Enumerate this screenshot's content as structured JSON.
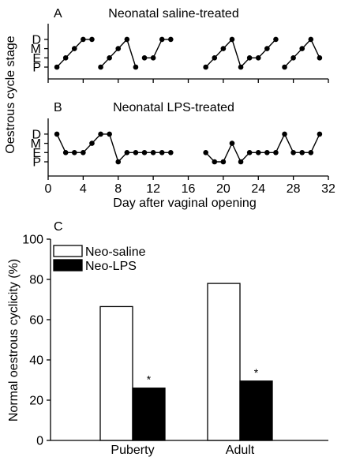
{
  "figure": {
    "shared_ylabel_AB": "Oestrous cycle stage",
    "shared_xlabel_AB": "Day after vaginal opening"
  },
  "chart_data": [
    {
      "panel": "A",
      "type": "line",
      "title": "Neonatal saline-treated",
      "xlabel": "Day after vaginal opening",
      "ylabel": "Oestrous cycle stage",
      "y_categories": [
        "P",
        "E",
        "M",
        "D"
      ],
      "xlim": [
        0,
        32
      ],
      "xticks": [
        0,
        4,
        8,
        12,
        16,
        20,
        24,
        28,
        32
      ],
      "x_tick_labels_shown": false,
      "segments": [
        {
          "x": [
            1,
            2,
            3,
            4,
            5
          ],
          "y": [
            "P",
            "E",
            "M",
            "D",
            "D"
          ]
        },
        {
          "x": [
            6,
            7,
            8,
            9,
            10
          ],
          "y": [
            "P",
            "E",
            "M",
            "D",
            "P"
          ]
        },
        {
          "x": [
            11,
            12,
            13,
            14
          ],
          "y": [
            "E",
            "E",
            "D",
            "D"
          ]
        },
        {
          "x": [
            18,
            19,
            20,
            21,
            22,
            23,
            24,
            25,
            26
          ],
          "y": [
            "P",
            "E",
            "M",
            "D",
            "P",
            "E",
            "E",
            "M",
            "D"
          ]
        },
        {
          "x": [
            27,
            28,
            29,
            30,
            31
          ],
          "y": [
            "P",
            "E",
            "M",
            "D",
            "E"
          ]
        }
      ]
    },
    {
      "panel": "B",
      "type": "line",
      "title": "Neonatal LPS-treated",
      "xlabel": "Day after vaginal opening",
      "ylabel": "Oestrous cycle stage",
      "y_categories": [
        "P",
        "E",
        "M",
        "D"
      ],
      "xlim": [
        0,
        32
      ],
      "xticks": [
        0,
        4,
        8,
        12,
        16,
        20,
        24,
        28,
        32
      ],
      "x_tick_labels": [
        "0",
        "4",
        "8",
        "12",
        "16",
        "20",
        "24",
        "28",
        "32"
      ],
      "segments": [
        {
          "x": [
            1,
            2,
            3,
            4,
            5,
            6,
            7,
            8,
            9,
            10,
            11,
            12,
            13,
            14
          ],
          "y": [
            "D",
            "E",
            "E",
            "E",
            "M",
            "D",
            "D",
            "P",
            "E",
            "E",
            "E",
            "E",
            "E",
            "E"
          ]
        },
        {
          "x": [
            18,
            19,
            20,
            21,
            22,
            23,
            24,
            25,
            26,
            27,
            28,
            29,
            30,
            31
          ],
          "y": [
            "E",
            "P",
            "P",
            "M",
            "P",
            "E",
            "E",
            "E",
            "E",
            "D",
            "E",
            "E",
            "E",
            "D"
          ]
        }
      ]
    },
    {
      "panel": "C",
      "type": "bar",
      "title": "",
      "xlabel": "",
      "ylabel": "Normal oestrous cyclicity (%)",
      "categories": [
        "Puberty",
        "Adult"
      ],
      "series": [
        {
          "name": "Neo-saline",
          "values": [
            66.5,
            78
          ],
          "color": "#ffffff"
        },
        {
          "name": "Neo-LPS",
          "values": [
            26,
            29.5
          ],
          "color": "#000000"
        }
      ],
      "annotations": [
        "*",
        "*"
      ],
      "ylim": [
        0,
        100
      ],
      "yticks": [
        0,
        20,
        40,
        60,
        80,
        100
      ],
      "legend_position": "top-left",
      "grid": false
    }
  ]
}
